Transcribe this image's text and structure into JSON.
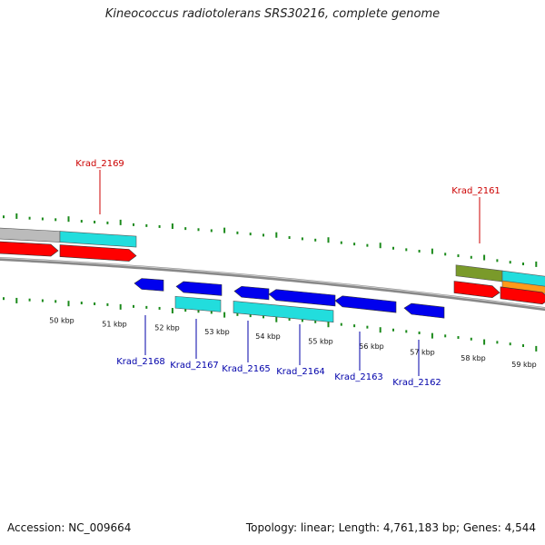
{
  "title": "Kineococcus radiotolerans SRS30216, complete genome",
  "footer": {
    "accession": "Accession: NC_009664",
    "topology": "Topology: linear; Length: 4,761,183 bp; Genes: 4,544"
  },
  "colors": {
    "forward_gene": "#ff0000",
    "reverse_gene": "#0000ee",
    "forward_label": "#cc0000",
    "reverse_label": "#0000aa",
    "cds_cyan": "#22dddd",
    "tick_green": "#1b8a1b",
    "genome_line": "#888888",
    "grey_feature": "#bbbbbb",
    "olive_feature": "#7a9a2a",
    "orange_feature": "#ff9a1a"
  },
  "axis": {
    "unit": "kbp",
    "ticks": [
      {
        "label": "50 kbp",
        "value": 50
      },
      {
        "label": "51 kbp",
        "value": 51
      },
      {
        "label": "52 kbp",
        "value": 52
      },
      {
        "label": "53 kbp",
        "value": 53
      },
      {
        "label": "54 kbp",
        "value": 54
      },
      {
        "label": "55 kbp",
        "value": 55
      },
      {
        "label": "56 kbp",
        "value": 56
      },
      {
        "label": "57 kbp",
        "value": 57
      },
      {
        "label": "58 kbp",
        "value": 58
      },
      {
        "label": "59 kbp",
        "value": 59
      }
    ]
  },
  "gene_labels": [
    {
      "text": "Krad_2169",
      "strand": "forward"
    },
    {
      "text": "Krad_2161",
      "strand": "forward"
    },
    {
      "text": "Krad_2168",
      "strand": "reverse"
    },
    {
      "text": "Krad_2167",
      "strand": "reverse"
    },
    {
      "text": "Krad_2165",
      "strand": "reverse"
    },
    {
      "text": "Krad_2164",
      "strand": "reverse"
    },
    {
      "text": "Krad_2163",
      "strand": "reverse"
    },
    {
      "text": "Krad_2162",
      "strand": "reverse"
    }
  ]
}
